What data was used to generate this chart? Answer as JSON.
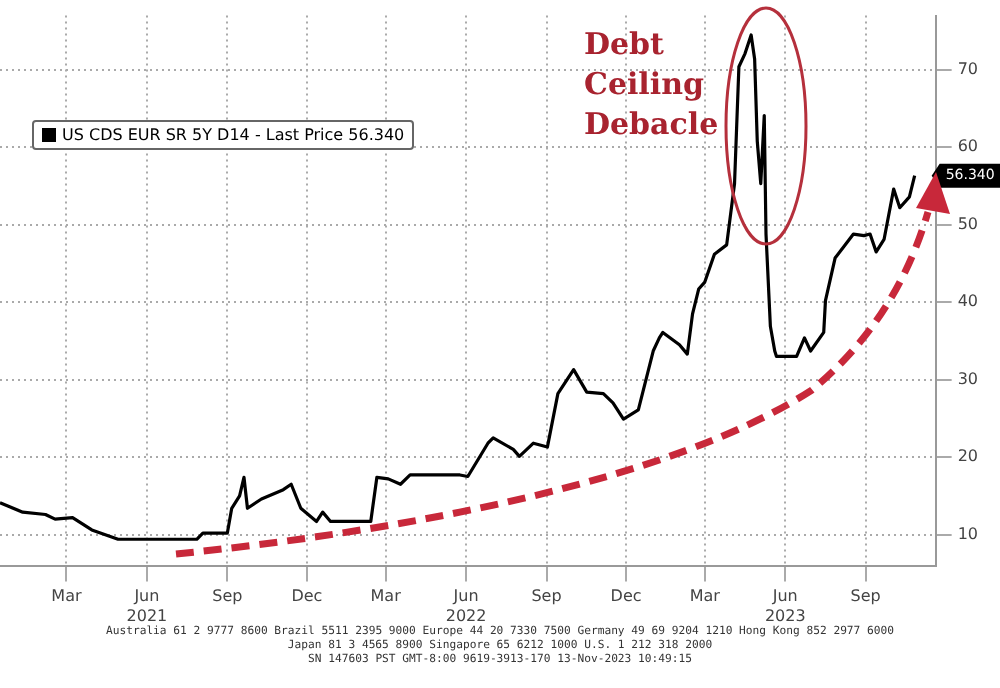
{
  "chart_data": {
    "type": "line",
    "legend": "top left",
    "grid": true,
    "xlim": [
      "2020-12-15",
      "2023-11-20"
    ],
    "xticks": [
      {
        "value": "2021-03-01",
        "label": "Mar"
      },
      {
        "value": "2021-06-01",
        "label": "Jun\n2021"
      },
      {
        "value": "2021-09-01",
        "label": "Sep"
      },
      {
        "value": "2021-12-01",
        "label": "Dec"
      },
      {
        "value": "2022-03-01",
        "label": "Mar"
      },
      {
        "value": "2022-06-01",
        "label": "Jun\n2022"
      },
      {
        "value": "2022-09-01",
        "label": "Sep"
      },
      {
        "value": "2022-12-01",
        "label": "Dec"
      },
      {
        "value": "2023-03-01",
        "label": "Mar"
      },
      {
        "value": "2023-06-01",
        "label": "Jun\n2023"
      },
      {
        "value": "2023-09-01",
        "label": "Sep"
      }
    ],
    "ylim": [
      6,
      77
    ],
    "yticks": [
      10,
      20,
      30,
      40,
      50,
      60,
      70
    ],
    "x": [
      "2020-12-15",
      "2021-01-10",
      "2021-02-05",
      "2021-02-16",
      "2021-03-08",
      "2021-03-30",
      "2021-04-29",
      "2021-06-20",
      "2021-07-28",
      "2021-08-04",
      "2021-09-01",
      "2021-09-06",
      "2021-09-15",
      "2021-09-20",
      "2021-09-24",
      "2021-10-10",
      "2021-11-04",
      "2021-11-13",
      "2021-11-24",
      "2021-12-12",
      "2021-12-19",
      "2021-12-28",
      "2022-02-12",
      "2022-02-19",
      "2022-03-04",
      "2022-03-18",
      "2022-03-29",
      "2022-05-25",
      "2022-06-03",
      "2022-06-26",
      "2022-07-02",
      "2022-07-25",
      "2022-08-01",
      "2022-08-17",
      "2022-09-02",
      "2022-09-14",
      "2022-10-02",
      "2022-10-17",
      "2022-11-05",
      "2022-11-16",
      "2022-11-28",
      "2022-12-15",
      "2023-01-01",
      "2023-01-08",
      "2023-01-12",
      "2023-01-31",
      "2023-02-09",
      "2023-02-15",
      "2023-02-22",
      "2023-03-01",
      "2023-03-12",
      "2023-03-26",
      "2023-04-04",
      "2023-04-09",
      "2023-04-16",
      "2023-04-23",
      "2023-04-27",
      "2023-04-30",
      "2023-05-04",
      "2023-05-08",
      "2023-05-10",
      "2023-05-15",
      "2023-05-20",
      "2023-05-22",
      "2023-06-14",
      "2023-06-23",
      "2023-06-30",
      "2023-07-15",
      "2023-07-17",
      "2023-07-28",
      "2023-08-18",
      "2023-08-30",
      "2023-09-06",
      "2023-09-13",
      "2023-09-22",
      "2023-10-03",
      "2023-10-10",
      "2023-10-21",
      "2023-10-27"
    ],
    "series": [
      {
        "name": "US CDS EUR SR 5Y D14 - Last Price 56.340",
        "color": "#000000",
        "values": [
          14.1,
          12.9,
          12.6,
          12.0,
          12.2,
          10.6,
          9.4,
          9.4,
          9.4,
          10.2,
          10.2,
          13.4,
          15.0,
          17.4,
          13.4,
          14.6,
          15.8,
          16.5,
          13.4,
          11.7,
          12.9,
          11.7,
          11.7,
          17.4,
          17.2,
          16.5,
          17.7,
          17.7,
          17.5,
          21.8,
          22.5,
          21.0,
          20.1,
          21.8,
          21.3,
          28.2,
          31.3,
          28.4,
          28.2,
          27.0,
          24.9,
          26.1,
          33.7,
          35.4,
          36.1,
          34.5,
          33.3,
          38.5,
          41.7,
          42.6,
          46.2,
          47.4,
          55.3,
          70.4,
          72.1,
          74.5,
          71.4,
          60.8,
          55.3,
          64.1,
          48.8,
          36.9,
          33.7,
          33.0,
          33.0,
          35.4,
          33.7,
          36.1,
          40.2,
          45.7,
          48.8,
          48.6,
          48.8,
          46.5,
          48.1,
          54.6,
          52.2,
          53.6,
          56.34
        ]
      }
    ],
    "annotations": [
      "Debt Ceiling Debacle",
      {
        "text": "56.340",
        "x": "2023-10-27",
        "y": 56.34
      },
      "Australia 61 2 9777 8600 Brazil 5511 2395 9000 Europe 44 20 7330 7500 Germany 49 69 9204 1210 Hong Kong 852 2977 6000",
      "Japan 81 3 4565 8900   Singapore 65 6212 1000   U.S. 1 212 318 2000",
      "SN 147603 PST GMT-8:00 9619-3913-170 13-Nov-2023 10:49:15"
    ]
  }
}
